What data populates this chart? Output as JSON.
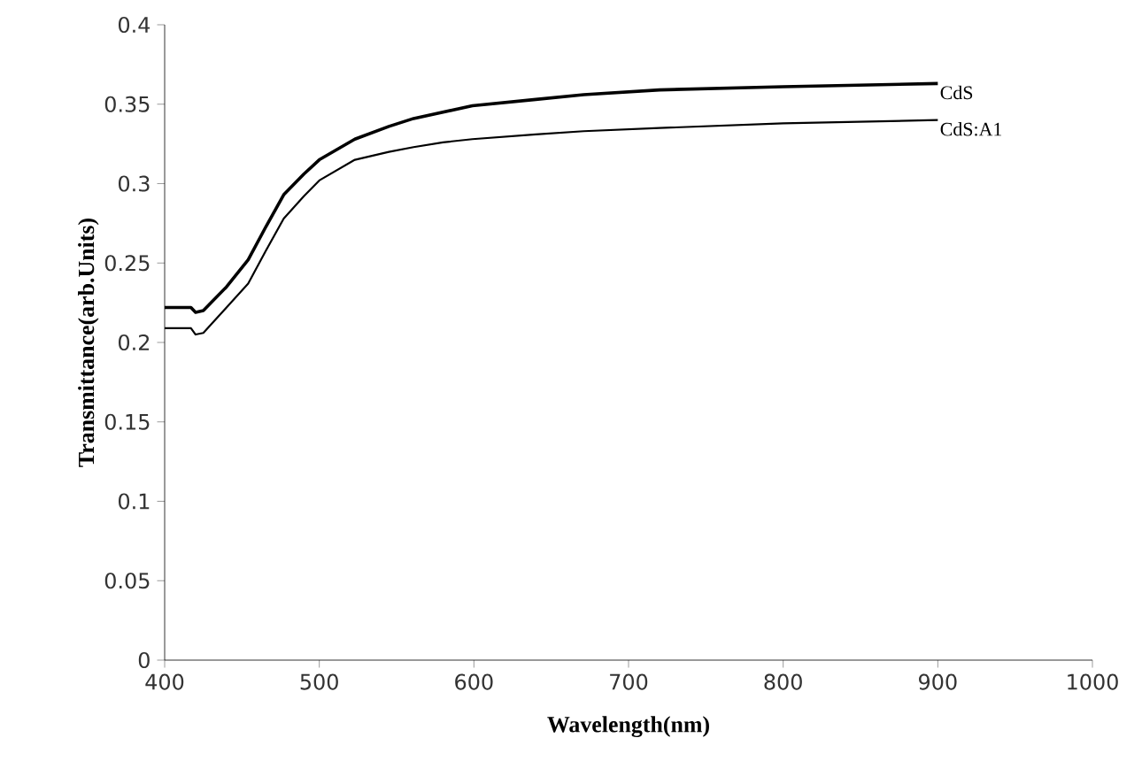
{
  "chart_data": {
    "type": "line",
    "xlabel": "Wavelength(nm)",
    "ylabel": "Transmittance(arb.Units)",
    "xlim": [
      400,
      1000
    ],
    "ylim": [
      0,
      0.4
    ],
    "xticks": [
      400,
      500,
      600,
      700,
      800,
      900,
      1000
    ],
    "yticks": [
      0,
      0.05,
      0.1,
      0.15,
      0.2,
      0.25,
      0.3,
      0.35,
      0.4
    ],
    "marker": "none",
    "line_style": "solid",
    "series": [
      {
        "name": "CdS",
        "color": "#000000",
        "x": [
          400,
          417,
          420,
          425,
          440,
          454,
          465,
          477,
          490,
          500,
          523,
          545,
          561,
          580,
          599,
          640,
          671,
          720,
          800,
          900
        ],
        "values": [
          0.222,
          0.222,
          0.219,
          0.22,
          0.235,
          0.252,
          0.272,
          0.293,
          0.306,
          0.315,
          0.328,
          0.336,
          0.341,
          0.345,
          0.349,
          0.353,
          0.356,
          0.359,
          0.361,
          0.363
        ]
      },
      {
        "name": "CdS:A1",
        "color": "#000000",
        "x": [
          400,
          417,
          420,
          425,
          440,
          454,
          465,
          477,
          490,
          500,
          523,
          545,
          561,
          580,
          599,
          640,
          671,
          720,
          800,
          900
        ],
        "values": [
          0.209,
          0.209,
          0.205,
          0.206,
          0.222,
          0.237,
          0.257,
          0.278,
          0.292,
          0.302,
          0.315,
          0.32,
          0.323,
          0.326,
          0.328,
          0.331,
          0.333,
          0.335,
          0.338,
          0.34
        ]
      }
    ]
  }
}
